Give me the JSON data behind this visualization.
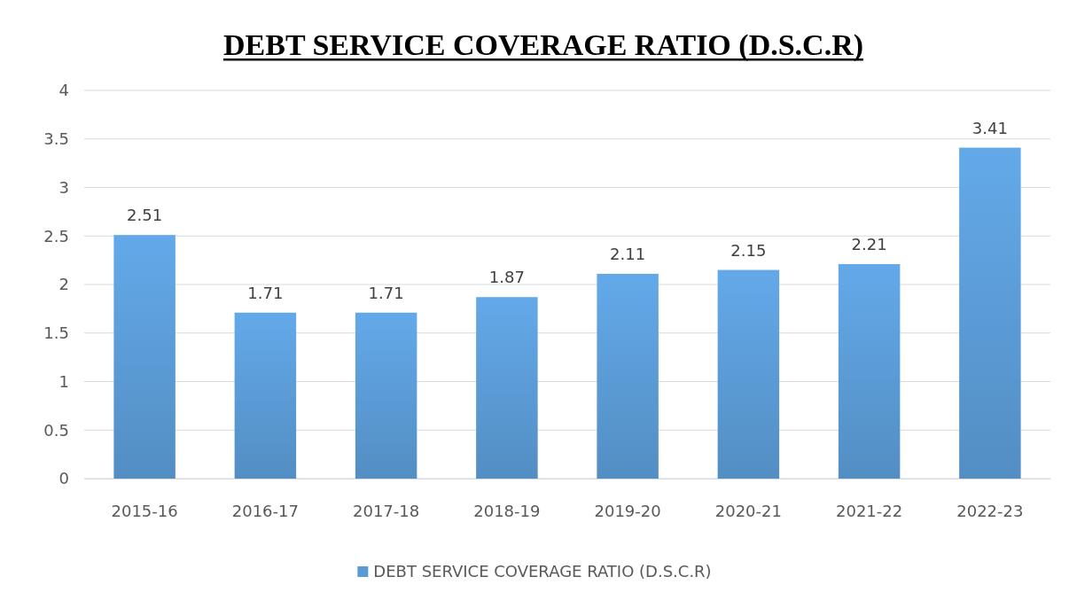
{
  "chart_data": {
    "type": "bar",
    "title": "DEBT SERVICE COVERAGE RATIO (D.S.C.R)",
    "categories": [
      "2015-16",
      "2016-17",
      "2017-18",
      "2018-19",
      "2019-20",
      "2020-21",
      "2021-22",
      "2022-23"
    ],
    "series": [
      {
        "name": "DEBT SERVICE COVERAGE RATIO (D.S.C.R)",
        "color": "#5b9bd5",
        "values": [
          2.51,
          1.71,
          1.71,
          1.87,
          2.11,
          2.15,
          2.21,
          3.41
        ]
      }
    ],
    "ylim": [
      0,
      4
    ],
    "yticks": [
      0,
      {
        "value": 0.5,
        "label": "0.5"
      },
      1,
      {
        "value": 1.5,
        "label": "1.5"
      },
      2,
      {
        "value": 2.5,
        "label": "2.5"
      },
      3,
      {
        "value": 3.5,
        "label": "3.5"
      },
      4
    ],
    "grid": "y",
    "legend": "bottom",
    "data_labels": true
  }
}
